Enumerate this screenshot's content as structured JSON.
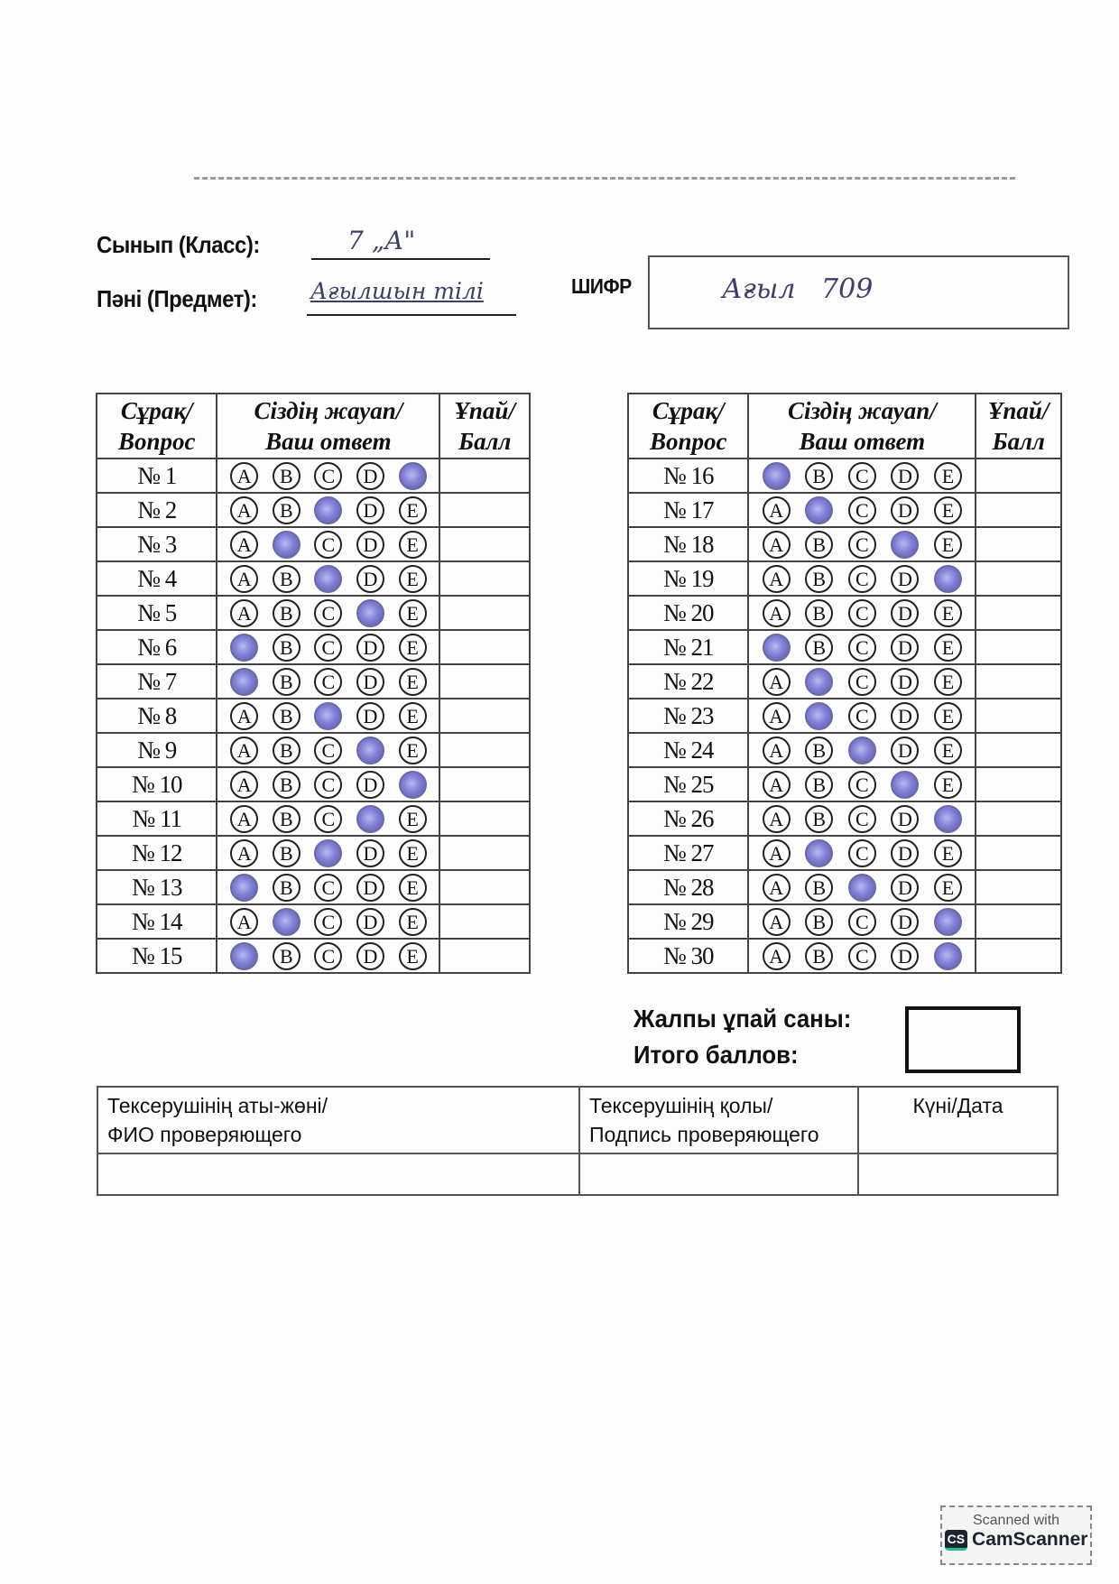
{
  "header": {
    "class_label": "Сынып (Класс):",
    "class_value": "7 „А\"",
    "subject_label": "Пәні (Предмет):",
    "subject_value": "Ағылшын тілі",
    "cipher_label": "ШИФР",
    "cipher_value": "Ағыл   709"
  },
  "table_headers": {
    "question": [
      "Сұрақ/",
      "Вопрос"
    ],
    "answer": [
      "Сіздің жауап/",
      "Ваш ответ"
    ],
    "score": [
      "Ұпай/",
      "Балл"
    ]
  },
  "options": [
    "A",
    "B",
    "C",
    "D",
    "E"
  ],
  "bubble_fill_color": "#7f7fd6",
  "questions": [
    {
      "label": "№ 1",
      "answer": "E"
    },
    {
      "label": "№ 2",
      "answer": "C"
    },
    {
      "label": "№ 3",
      "answer": "B"
    },
    {
      "label": "№ 4",
      "answer": "C"
    },
    {
      "label": "№ 5",
      "answer": "D"
    },
    {
      "label": "№ 6",
      "answer": "A"
    },
    {
      "label": "№ 7",
      "answer": "A"
    },
    {
      "label": "№ 8",
      "answer": "C"
    },
    {
      "label": "№ 9",
      "answer": "D"
    },
    {
      "label": "№ 10",
      "answer": "E"
    },
    {
      "label": "№ 11",
      "answer": "D"
    },
    {
      "label": "№ 12",
      "answer": "C"
    },
    {
      "label": "№ 13",
      "answer": "A"
    },
    {
      "label": "№ 14",
      "answer": "B"
    },
    {
      "label": "№ 15",
      "answer": "A"
    },
    {
      "label": "№ 16",
      "answer": "A"
    },
    {
      "label": "№ 17",
      "answer": "B"
    },
    {
      "label": "№ 18",
      "answer": "D"
    },
    {
      "label": "№ 19",
      "answer": "E"
    },
    {
      "label": "№ 20",
      "answer": null
    },
    {
      "label": "№ 21",
      "answer": "A"
    },
    {
      "label": "№ 22",
      "answer": "B"
    },
    {
      "label": "№ 23",
      "answer": "B"
    },
    {
      "label": "№ 24",
      "answer": "C"
    },
    {
      "label": "№ 25",
      "answer": "D"
    },
    {
      "label": "№ 26",
      "answer": "E"
    },
    {
      "label": "№ 27",
      "answer": "B"
    },
    {
      "label": "№ 28",
      "answer": "C"
    },
    {
      "label": "№ 29",
      "answer": "E"
    },
    {
      "label": "№ 30",
      "answer": "E"
    }
  ],
  "total": {
    "label_kz": "Жалпы ұпай саны:",
    "label_ru": "Итого баллов:"
  },
  "checker": {
    "name_label": [
      "Тексерушінің аты-жөні/",
      "ФИО проверяющего"
    ],
    "signature_label": [
      "Тексерушінің қолы/",
      "Подпись проверяющего"
    ],
    "date_label": "Күні/Дата"
  },
  "watermark": {
    "line1": "Scanned with",
    "logo": "CS",
    "brand": "CamScanner"
  }
}
